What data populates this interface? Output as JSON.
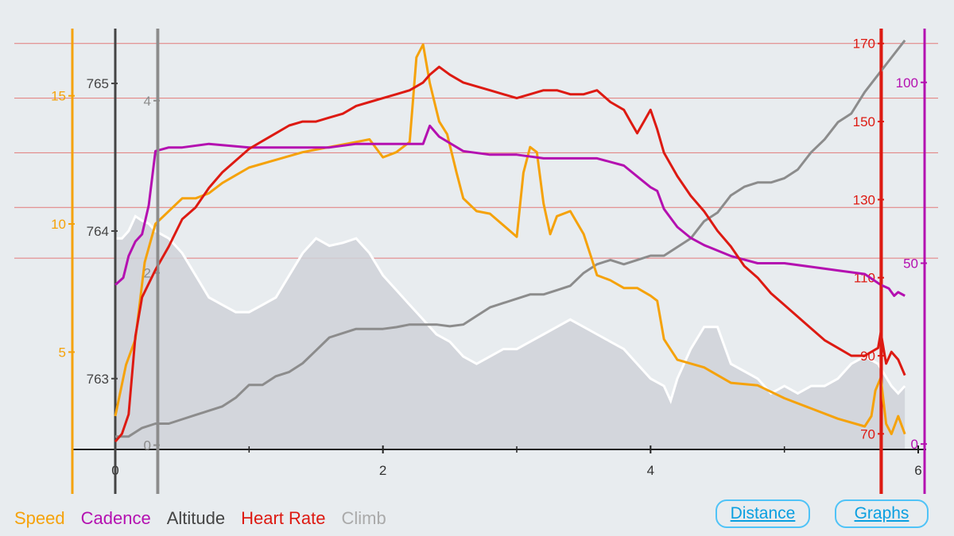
{
  "chart_data": {
    "type": "line",
    "x_axis": {
      "ticks": [
        "0",
        "2",
        "4",
        "6"
      ],
      "range": [
        0,
        6
      ]
    },
    "axes": {
      "speed": {
        "color": "#f5a20a",
        "ticks": [
          "5",
          "10",
          "15"
        ],
        "range": [
          1.2,
          17.5
        ]
      },
      "altitude": {
        "color": "#444444",
        "ticks": [
          "763",
          "764",
          "765"
        ],
        "range": [
          762.52,
          765.35
        ]
      },
      "climb": {
        "color": "#8c8c8c",
        "ticks": [
          "0",
          "2",
          "4"
        ],
        "range": [
          -0.05,
          4.8
        ]
      },
      "heart_rate": {
        "color": "#dd1a12",
        "ticks": [
          "70",
          "90",
          "110",
          "130",
          "150",
          "170"
        ],
        "range": [
          66,
          173
        ]
      },
      "cadence": {
        "color": "#b410b0",
        "ticks": [
          "0",
          "50",
          "100"
        ],
        "range": [
          -1.5,
          114
        ]
      }
    },
    "gridlines_heart_rate": [
      170,
      156,
      142,
      128,
      115
    ],
    "vertical_markers": [
      0.32,
      5.72
    ],
    "series": [
      {
        "name": "Speed",
        "axis": "speed",
        "color": "#f5a20a",
        "x": [
          0.0,
          0.08,
          0.15,
          0.22,
          0.3,
          0.4,
          0.5,
          0.6,
          0.7,
          0.8,
          0.9,
          1.0,
          1.2,
          1.4,
          1.6,
          1.8,
          1.9,
          2.0,
          2.1,
          2.2,
          2.25,
          2.3,
          2.35,
          2.42,
          2.48,
          2.55,
          2.6,
          2.7,
          2.8,
          3.0,
          3.05,
          3.1,
          3.15,
          3.2,
          3.25,
          3.3,
          3.4,
          3.5,
          3.55,
          3.6,
          3.7,
          3.8,
          3.9,
          4.0,
          4.05,
          4.1,
          4.2,
          4.4,
          4.6,
          4.8,
          5.0,
          5.2,
          5.4,
          5.6,
          5.65,
          5.68,
          5.72,
          5.76,
          5.8,
          5.85,
          5.9
        ],
        "values": [
          2.5,
          4.5,
          5.5,
          8.5,
          10.0,
          10.5,
          11.0,
          11.0,
          11.2,
          11.6,
          11.9,
          12.2,
          12.5,
          12.8,
          13.0,
          13.2,
          13.3,
          12.6,
          12.8,
          13.2,
          16.5,
          17.0,
          15.5,
          14.0,
          13.5,
          12.0,
          11.0,
          10.5,
          10.4,
          9.5,
          12.0,
          13.0,
          12.8,
          10.8,
          9.6,
          10.3,
          10.5,
          9.6,
          8.8,
          8.0,
          7.8,
          7.5,
          7.5,
          7.2,
          7.0,
          5.5,
          4.7,
          4.4,
          3.8,
          3.7,
          3.2,
          2.8,
          2.4,
          2.1,
          2.5,
          3.5,
          4.0,
          2.2,
          1.8,
          2.5,
          1.8
        ]
      },
      {
        "name": "Cadence",
        "axis": "cadence",
        "color": "#b410b0",
        "x": [
          0.0,
          0.06,
          0.1,
          0.15,
          0.2,
          0.25,
          0.3,
          0.4,
          0.5,
          0.7,
          1.0,
          1.3,
          1.6,
          1.8,
          2.0,
          2.1,
          2.3,
          2.35,
          2.42,
          2.6,
          2.8,
          3.0,
          3.2,
          3.4,
          3.6,
          3.8,
          3.9,
          4.0,
          4.05,
          4.1,
          4.2,
          4.3,
          4.4,
          4.6,
          4.8,
          5.0,
          5.2,
          5.4,
          5.6,
          5.72,
          5.78,
          5.82,
          5.85,
          5.9
        ],
        "values": [
          44,
          46,
          52,
          56,
          58,
          66,
          81,
          82,
          82,
          83,
          82,
          82,
          82,
          83,
          83,
          83,
          83,
          88,
          85,
          81,
          80,
          80,
          79,
          79,
          79,
          77,
          74,
          71,
          70,
          65,
          60,
          57,
          55,
          52,
          50,
          50,
          49,
          48,
          47,
          44,
          43,
          41,
          42,
          41
        ]
      },
      {
        "name": "Altitude",
        "axis": "altitude",
        "color": "#ffffff",
        "x": [
          0.0,
          0.05,
          0.1,
          0.15,
          0.2,
          0.25,
          0.3,
          0.4,
          0.5,
          0.6,
          0.7,
          0.8,
          0.9,
          1.0,
          1.1,
          1.2,
          1.3,
          1.4,
          1.5,
          1.6,
          1.7,
          1.8,
          1.9,
          2.0,
          2.1,
          2.2,
          2.3,
          2.4,
          2.5,
          2.6,
          2.7,
          2.8,
          2.9,
          3.0,
          3.1,
          3.2,
          3.3,
          3.4,
          3.5,
          3.6,
          3.7,
          3.8,
          3.9,
          4.0,
          4.1,
          4.15,
          4.2,
          4.3,
          4.4,
          4.5,
          4.6,
          4.7,
          4.8,
          4.9,
          5.0,
          5.1,
          5.2,
          5.3,
          5.4,
          5.5,
          5.6,
          5.7,
          5.8,
          5.85,
          5.9
        ],
        "values": [
          763.95,
          763.95,
          764.0,
          764.1,
          764.07,
          764.05,
          764.0,
          763.95,
          763.85,
          763.7,
          763.55,
          763.5,
          763.45,
          763.45,
          763.5,
          763.55,
          763.7,
          763.85,
          763.95,
          763.9,
          763.92,
          763.95,
          763.85,
          763.7,
          763.6,
          763.5,
          763.4,
          763.3,
          763.25,
          763.15,
          763.1,
          763.15,
          763.2,
          763.2,
          763.25,
          763.3,
          763.35,
          763.4,
          763.35,
          763.3,
          763.25,
          763.2,
          763.1,
          763.0,
          762.95,
          762.85,
          763.0,
          763.2,
          763.35,
          763.35,
          763.1,
          763.05,
          763.0,
          762.9,
          762.95,
          762.9,
          762.95,
          762.95,
          763.0,
          763.1,
          763.15,
          763.1,
          762.95,
          762.9,
          762.95
        ]
      },
      {
        "name": "Heart Rate",
        "axis": "heart_rate",
        "color": "#dd1a12",
        "x": [
          0.0,
          0.05,
          0.1,
          0.15,
          0.2,
          0.3,
          0.4,
          0.5,
          0.6,
          0.7,
          0.8,
          0.9,
          1.0,
          1.1,
          1.2,
          1.3,
          1.4,
          1.5,
          1.6,
          1.7,
          1.8,
          1.9,
          2.0,
          2.1,
          2.2,
          2.3,
          2.35,
          2.42,
          2.5,
          2.6,
          2.7,
          2.8,
          2.9,
          3.0,
          3.1,
          3.2,
          3.3,
          3.4,
          3.5,
          3.6,
          3.7,
          3.8,
          3.85,
          3.9,
          3.95,
          4.0,
          4.05,
          4.1,
          4.2,
          4.3,
          4.4,
          4.5,
          4.6,
          4.7,
          4.8,
          4.9,
          5.0,
          5.1,
          5.2,
          5.3,
          5.4,
          5.5,
          5.6,
          5.7,
          5.72,
          5.76,
          5.8,
          5.85,
          5.9
        ],
        "values": [
          68,
          70,
          75,
          95,
          105,
          112,
          118,
          125,
          128,
          133,
          137,
          140,
          143,
          145,
          147,
          149,
          150,
          150,
          151,
          152,
          154,
          155,
          156,
          157,
          158,
          160,
          162,
          164,
          162,
          160,
          159,
          158,
          157,
          156,
          157,
          158,
          158,
          157,
          157,
          158,
          155,
          153,
          150,
          147,
          150,
          153,
          148,
          142,
          136,
          131,
          127,
          122,
          118,
          113,
          110,
          106,
          103,
          100,
          97,
          94,
          92,
          90,
          90,
          92,
          96,
          88,
          91,
          89,
          85
        ]
      },
      {
        "name": "Climb",
        "axis": "climb",
        "color": "#8c8c8c",
        "x": [
          0.0,
          0.1,
          0.2,
          0.3,
          0.4,
          0.5,
          0.6,
          0.7,
          0.8,
          0.9,
          1.0,
          1.1,
          1.2,
          1.3,
          1.4,
          1.5,
          1.6,
          1.7,
          1.8,
          1.9,
          2.0,
          2.1,
          2.2,
          2.3,
          2.4,
          2.5,
          2.6,
          2.7,
          2.8,
          2.9,
          3.0,
          3.1,
          3.2,
          3.3,
          3.4,
          3.5,
          3.6,
          3.7,
          3.8,
          3.9,
          4.0,
          4.1,
          4.2,
          4.3,
          4.4,
          4.5,
          4.6,
          4.7,
          4.8,
          4.9,
          5.0,
          5.1,
          5.2,
          5.3,
          5.4,
          5.5,
          5.6,
          5.7,
          5.8,
          5.9
        ],
        "values": [
          0.1,
          0.1,
          0.2,
          0.25,
          0.25,
          0.3,
          0.35,
          0.4,
          0.45,
          0.55,
          0.7,
          0.7,
          0.8,
          0.85,
          0.95,
          1.1,
          1.25,
          1.3,
          1.35,
          1.35,
          1.35,
          1.37,
          1.4,
          1.4,
          1.4,
          1.38,
          1.4,
          1.5,
          1.6,
          1.65,
          1.7,
          1.75,
          1.75,
          1.8,
          1.85,
          2.0,
          2.1,
          2.15,
          2.1,
          2.15,
          2.2,
          2.2,
          2.3,
          2.4,
          2.6,
          2.7,
          2.9,
          3.0,
          3.05,
          3.05,
          3.1,
          3.2,
          3.4,
          3.55,
          3.75,
          3.85,
          4.1,
          4.3,
          4.5,
          4.7
        ]
      }
    ]
  },
  "legend": [
    {
      "label": "Speed",
      "color": "#f5a20a"
    },
    {
      "label": "Cadence",
      "color": "#b410b0"
    },
    {
      "label": "Altitude",
      "color": "#444444"
    },
    {
      "label": "Heart Rate",
      "color": "#dd1a12"
    },
    {
      "label": "Climb",
      "color": "#aaaaaa"
    }
  ],
  "buttons": {
    "distance_label": "Distance",
    "graphs_label": "Graphs"
  }
}
